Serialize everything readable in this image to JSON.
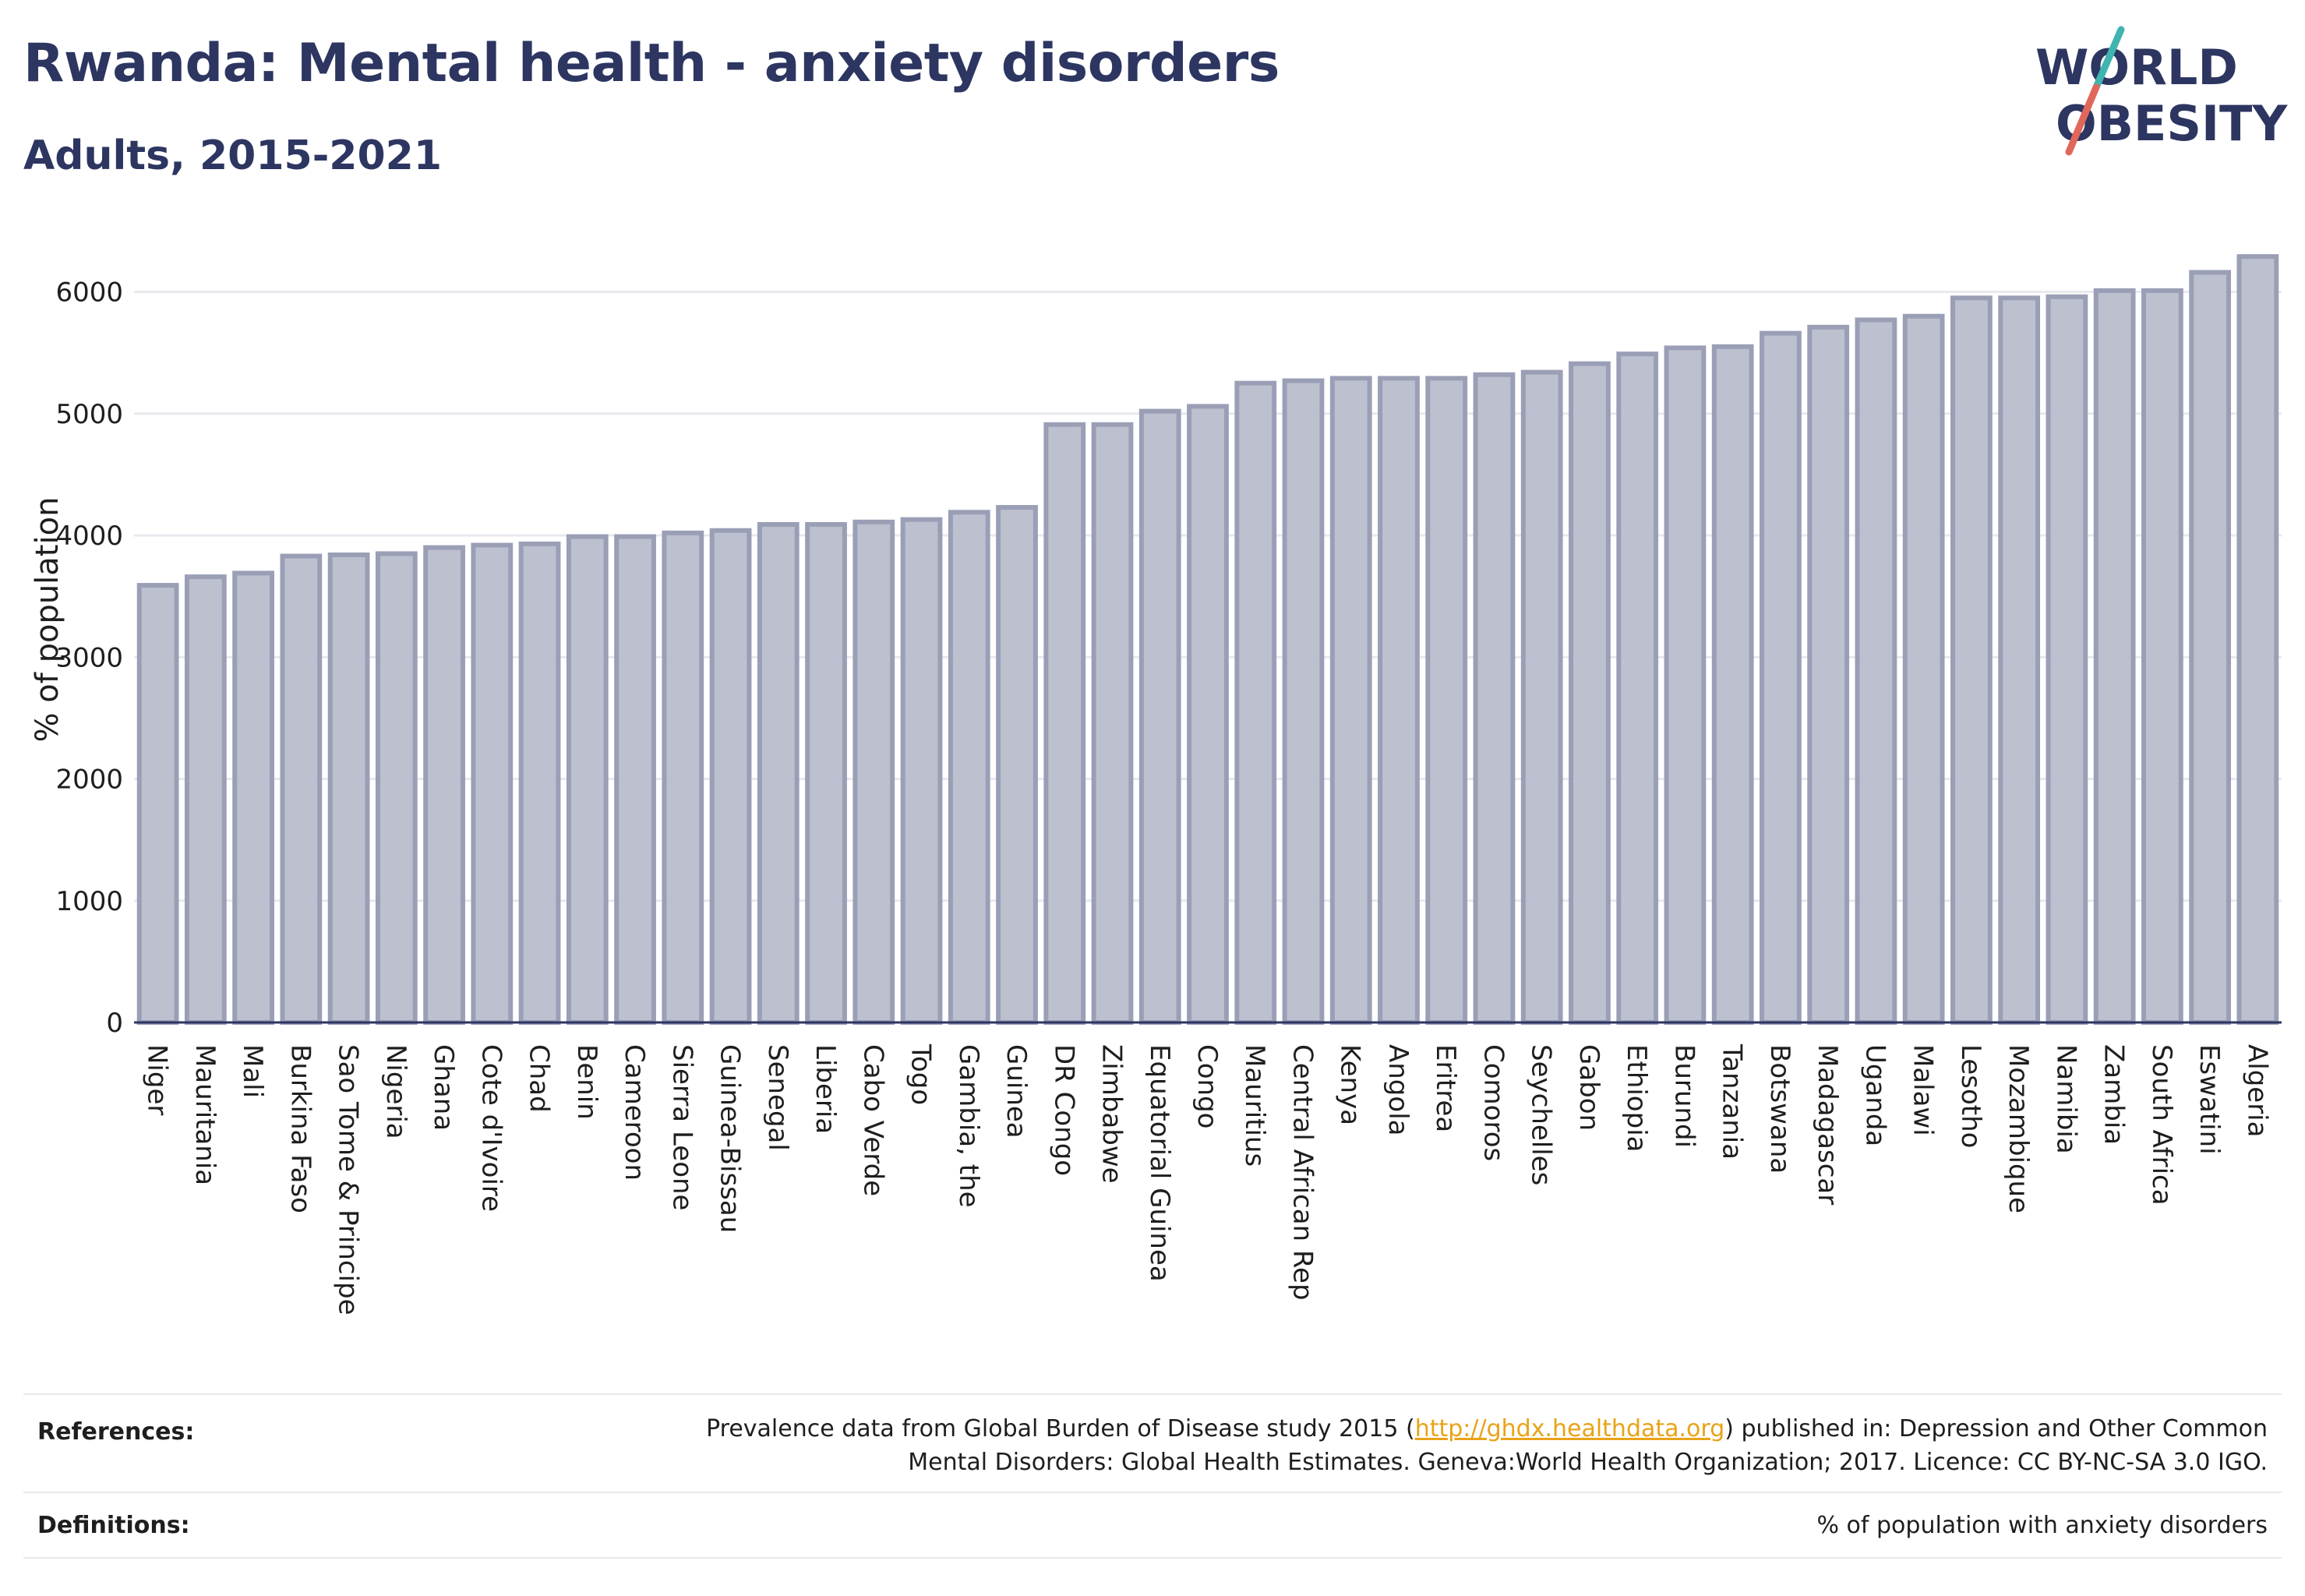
{
  "header": {
    "title": "Rwanda: Mental health - anxiety disorders",
    "subtitle": "Adults, 2015-2021"
  },
  "logo": {
    "line1": "WORLD",
    "line2": "OBESITY"
  },
  "colors": {
    "title": "#2d3561",
    "bar_fill": "#b9bdcc",
    "bar_stroke": "#9a9fb6",
    "grid": "#e8e8ee",
    "axis": "#2d3561",
    "link": "#e8a317",
    "logo_slash_top": "#3fb4b0",
    "logo_slash_bottom": "#e0675a"
  },
  "chart_data": {
    "type": "bar",
    "ylabel": "% of population",
    "xlabel": "",
    "ylim": [
      0,
      6400
    ],
    "yticks": [
      0,
      1000,
      2000,
      3000,
      4000,
      5000,
      6000
    ],
    "grid": true,
    "categories": [
      "Niger",
      "Mauritania",
      "Mali",
      "Burkina Faso",
      "Sao Tome & Principe",
      "Nigeria",
      "Ghana",
      "Cote d'Ivoire",
      "Chad",
      "Benin",
      "Cameroon",
      "Sierra Leone",
      "Guinea-Bissau",
      "Senegal",
      "Liberia",
      "Cabo Verde",
      "Togo",
      "Gambia, the",
      "Guinea",
      "DR Congo",
      "Zimbabwe",
      "Equatorial Guinea",
      "Congo",
      "Mauritius",
      "Central African Rep",
      "Kenya",
      "Angola",
      "Eritrea",
      "Comoros",
      "Seychelles",
      "Gabon",
      "Ethiopia",
      "Burundi",
      "Tanzania",
      "Botswana",
      "Madagascar",
      "Uganda",
      "Malawi",
      "Lesotho",
      "Mozambique",
      "Namibia",
      "Zambia",
      "South Africa",
      "Eswatini",
      "Algeria"
    ],
    "values": [
      3590,
      3660,
      3690,
      3830,
      3840,
      3850,
      3900,
      3920,
      3930,
      3990,
      3990,
      4020,
      4040,
      4090,
      4090,
      4110,
      4130,
      4190,
      4230,
      4910,
      4910,
      5020,
      5060,
      5250,
      5270,
      5290,
      5290,
      5290,
      5320,
      5340,
      5410,
      5490,
      5540,
      5550,
      5660,
      5710,
      5770,
      5800,
      5950,
      5950,
      5960,
      6010,
      6010,
      6160,
      6290
    ]
  },
  "references": {
    "label": "References:",
    "text_before": "Prevalence data from Global Burden of Disease study 2015 (",
    "link": "http://ghdx.healthdata.org",
    "text_after": ") published in: Depression and Other Common",
    "line2": "Mental Disorders: Global Health Estimates. Geneva:World Health Organization; 2017. Licence: CC BY-NC-SA 3.0 IGO."
  },
  "definitions": {
    "label": "Definitions:",
    "text": "% of population with anxiety disorders"
  }
}
